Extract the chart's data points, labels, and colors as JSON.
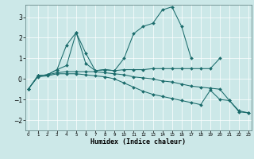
{
  "xlabel": "Humidex (Indice chaleur)",
  "background_color": "#cce8e8",
  "line_color": "#1a6b6b",
  "xlim": [
    -0.3,
    23.3
  ],
  "ylim": [
    -2.5,
    3.6
  ],
  "yticks": [
    -2,
    -1,
    0,
    1,
    2,
    3
  ],
  "xticks": [
    0,
    1,
    2,
    3,
    4,
    5,
    6,
    7,
    8,
    9,
    10,
    11,
    12,
    13,
    14,
    15,
    16,
    17,
    18,
    19,
    20,
    21,
    22,
    23
  ],
  "lines": [
    {
      "x": [
        0,
        1,
        2,
        3,
        4,
        5,
        6,
        7,
        8,
        9,
        10,
        11,
        12,
        13,
        14,
        15,
        16,
        17,
        18,
        19,
        20
      ],
      "y": [
        -0.5,
        0.15,
        0.2,
        0.45,
        0.65,
        2.25,
        0.75,
        0.4,
        0.45,
        0.4,
        0.45,
        0.45,
        0.45,
        0.5,
        0.5,
        0.5,
        0.5,
        0.5,
        0.5,
        0.5,
        1.0
      ]
    },
    {
      "x": [
        1,
        2,
        3,
        4,
        5,
        6,
        7,
        8,
        9,
        10,
        11,
        12,
        13,
        14,
        15,
        16,
        17
      ],
      "y": [
        0.15,
        0.2,
        0.45,
        1.65,
        2.25,
        1.25,
        0.4,
        0.45,
        0.4,
        1.0,
        2.2,
        2.55,
        2.7,
        3.35,
        3.5,
        2.55,
        1.0
      ]
    },
    {
      "x": [
        0,
        1,
        2,
        3,
        4,
        5,
        6,
        7,
        8,
        9,
        10,
        11,
        12,
        13,
        14,
        15,
        16,
        17,
        18,
        19,
        20,
        21,
        22,
        23
      ],
      "y": [
        -0.5,
        0.15,
        0.2,
        0.3,
        0.35,
        0.35,
        0.35,
        0.35,
        0.3,
        0.25,
        0.2,
        0.1,
        0.05,
        0.0,
        -0.1,
        -0.15,
        -0.25,
        -0.35,
        -0.4,
        -0.45,
        -0.5,
        -1.05,
        -1.6,
        -1.65
      ]
    },
    {
      "x": [
        0,
        1,
        2,
        3,
        4,
        5,
        6,
        7,
        8,
        9,
        10,
        11,
        12,
        13,
        14,
        15,
        16,
        17,
        18,
        19,
        20,
        21,
        22,
        23
      ],
      "y": [
        -0.5,
        0.1,
        0.15,
        0.25,
        0.25,
        0.25,
        0.2,
        0.15,
        0.1,
        0.0,
        -0.2,
        -0.4,
        -0.6,
        -0.75,
        -0.85,
        -0.95,
        -1.05,
        -1.15,
        -1.25,
        -0.55,
        -1.0,
        -1.05,
        -1.55,
        -1.65
      ]
    }
  ]
}
